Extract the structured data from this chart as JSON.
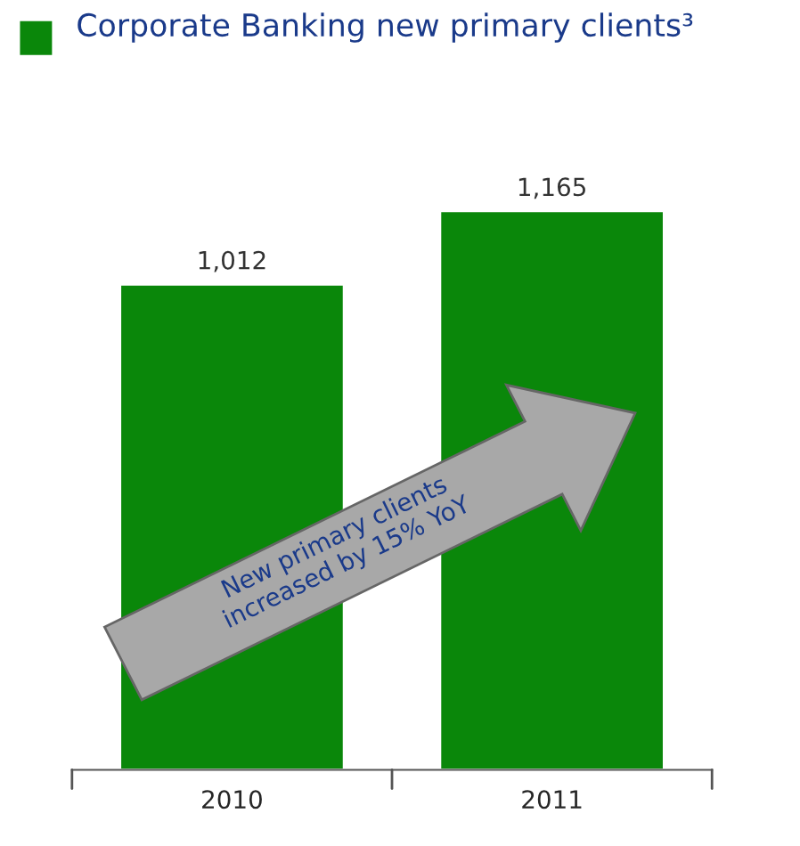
{
  "chart_data": {
    "type": "bar",
    "categories": [
      "2010",
      "2011"
    ],
    "title": "Corporate Banking new primary clients³",
    "series": [
      {
        "color": "#0a870a",
        "values": [
          1012,
          1165
        ],
        "value_labels": [
          "1,012",
          "1,165"
        ]
      }
    ],
    "grid": false,
    "annotations": [
      "New primary clients\nincreased by 15% YoY"
    ]
  }
}
